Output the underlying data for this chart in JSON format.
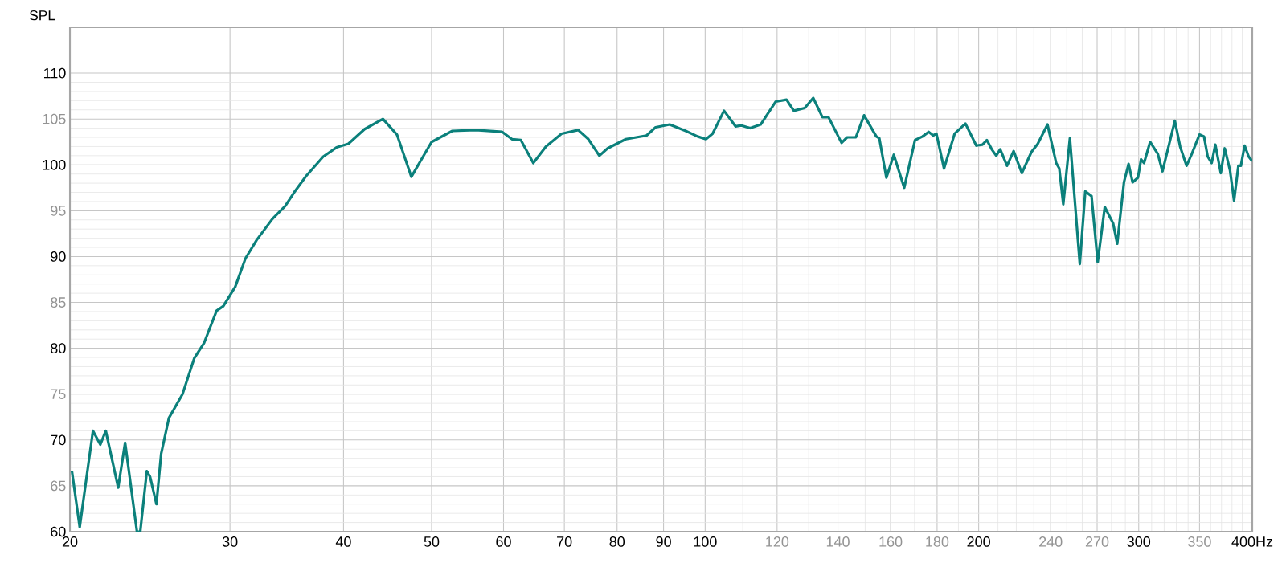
{
  "chart_data": {
    "type": "line",
    "ylabel": "SPL",
    "log": "x",
    "grid": true,
    "xlim": [
      20,
      400
    ],
    "ylim": [
      60,
      115
    ],
    "xticks": [
      20,
      30,
      40,
      50,
      60,
      70,
      80,
      90,
      100,
      120,
      140,
      160,
      180,
      200,
      240,
      270,
      300,
      350,
      {
        "value": 400,
        "label": "400Hz"
      }
    ],
    "yticks": [
      60,
      65,
      70,
      75,
      80,
      85,
      90,
      95,
      100,
      105,
      110
    ],
    "series": [
      {
        "color": "#0b807b",
        "x": [
          20.1,
          20.5,
          21.2,
          21.6,
          21.9,
          22.6,
          23.0,
          23.7,
          23.9,
          24.3,
          24.5,
          24.9,
          25.2,
          25.7,
          26.6,
          27.4,
          28.1,
          29.0,
          29.5,
          30.4,
          31.2,
          32.1,
          33.4,
          34.5,
          35.3,
          36.4,
          38.0,
          39.3,
          40.5,
          42.2,
          44.2,
          45.8,
          47.5,
          50.0,
          52.7,
          55.9,
          59.8,
          61.3,
          62.7,
          64.7,
          66.8,
          69.5,
          72.5,
          74.4,
          76.5,
          78.1,
          81.8,
          86.2,
          88.2,
          91.4,
          95.2,
          98.1,
          100.2,
          101.9,
          104.9,
          108.0,
          109.6,
          112.1,
          115.1,
          119.6,
          122.9,
          125.2,
          128.7,
          131.5,
          134.6,
          136.7,
          141.3,
          143.3,
          146.5,
          149.6,
          154.3,
          155.5,
          158.3,
          161.3,
          165.6,
          170.2,
          173.5,
          176.2,
          178.3,
          179.7,
          183.2,
          188.2,
          193.4,
          198.8,
          201.9,
          204.2,
          206.7,
          209.1,
          211.2,
          214.9,
          218.5,
          223.1,
          228.6,
          232.3,
          238.1,
          243.4,
          245.3,
          247.8,
          252.0,
          258.4,
          262.0,
          266.2,
          270.4,
          275.3,
          281.2,
          284.1,
          289.0,
          292.4,
          295.4,
          299.4,
          301.8,
          304.1,
          308.8,
          314.9,
          318.6,
          328.8,
          333.2,
          338.7,
          343.2,
          349.9,
          354.0,
          357.3,
          360.9,
          364.3,
          369.4,
          373.1,
          378.1,
          382.0,
          386.2,
          388.7,
          392.4,
          396.4,
          400
        ],
        "values": [
          66.6,
          60.5,
          71.0,
          69.5,
          71.0,
          64.8,
          69.7,
          60,
          60,
          66.6,
          66.0,
          63.0,
          68.5,
          72.4,
          75.0,
          78.9,
          80.6,
          84.1,
          84.6,
          86.7,
          89.8,
          91.8,
          94.1,
          95.5,
          97.0,
          98.8,
          100.9,
          101.9,
          102.3,
          103.9,
          105.0,
          103.3,
          98.7,
          102.5,
          103.7,
          103.8,
          103.6,
          102.8,
          102.7,
          100.2,
          102.0,
          103.4,
          103.8,
          102.8,
          101.0,
          101.8,
          102.8,
          103.2,
          104.1,
          104.4,
          103.7,
          103.1,
          102.8,
          103.4,
          105.9,
          104.2,
          104.3,
          104.0,
          104.4,
          106.9,
          107.1,
          105.9,
          106.2,
          107.3,
          105.2,
          105.2,
          102.4,
          103.0,
          103.0,
          105.4,
          103.1,
          102.9,
          98.6,
          101.1,
          97.5,
          102.7,
          103.1,
          103.6,
          103.2,
          103.4,
          99.6,
          103.4,
          104.5,
          102.1,
          102.2,
          102.7,
          101.7,
          101.0,
          101.7,
          99.9,
          101.5,
          99.1,
          101.4,
          102.3,
          104.4,
          100.2,
          99.6,
          95.7,
          102.9,
          89.2,
          97.1,
          96.6,
          89.4,
          95.4,
          93.6,
          91.4,
          98.1,
          100.1,
          98.1,
          98.6,
          100.6,
          100.2,
          102.5,
          101.2,
          99.3,
          104.8,
          102.0,
          99.9,
          101.2,
          103.3,
          103.1,
          100.9,
          100.2,
          102.2,
          99.1,
          101.8,
          99.4,
          96.1,
          99.9,
          99.9,
          102.1,
          100.9,
          100.4
        ]
      }
    ]
  }
}
